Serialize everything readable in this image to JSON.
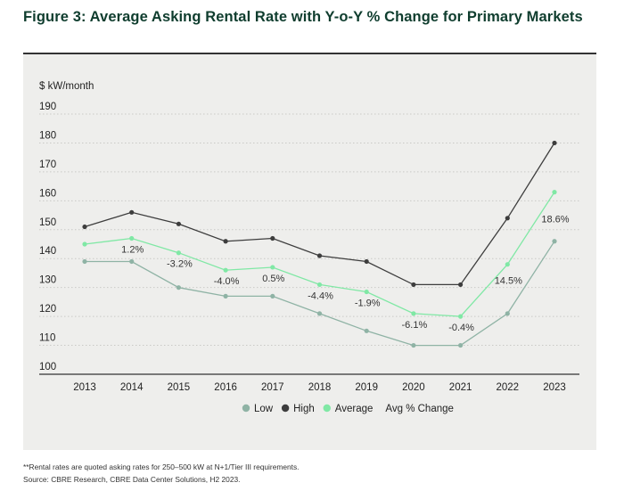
{
  "figure": {
    "title": "Figure 3: Average Asking Rental Rate with Y-o-Y % Change for Primary Markets"
  },
  "footnotes": {
    "note": "**Rental rates are quoted asking rates for 250–500 kW at N+1/Tier III requirements.",
    "source": "Source: CBRE Research, CBRE Data Center Solutions, H2 2023."
  },
  "colors": {
    "low": "#8fb3a5",
    "high": "#3d3d3d",
    "average": "#80e8a5",
    "panel": "#eeeeec",
    "title": "#0f3d2e"
  },
  "chart_data": {
    "type": "line",
    "title": "",
    "xlabel": "",
    "ylabel": "$ kW/month",
    "ylim": [
      100,
      190
    ],
    "yticks": [
      100,
      110,
      120,
      130,
      140,
      150,
      160,
      170,
      180,
      190
    ],
    "grid": "horizontal dotted",
    "legend_position": "bottom-center",
    "categories": [
      "2013",
      "2014",
      "2015",
      "2016",
      "2017",
      "2018",
      "2019",
      "2020",
      "2021",
      "2022",
      "2023"
    ],
    "series": [
      {
        "name": "Low",
        "color": "#8fb3a5",
        "values": [
          139,
          139,
          130,
          127,
          127,
          121,
          115,
          110,
          110,
          121,
          146
        ]
      },
      {
        "name": "High",
        "color": "#3d3d3d",
        "values": [
          151,
          156,
          152,
          146,
          147,
          141,
          139,
          131,
          131,
          154,
          180
        ]
      },
      {
        "name": "Average",
        "color": "#80e8a5",
        "values": [
          145,
          147,
          142,
          136,
          137,
          131,
          128.5,
          121,
          120,
          138,
          163
        ]
      }
    ],
    "pct_change_series_name": "Avg % Change",
    "pct_change_labels": [
      "",
      "1.2%",
      "-3.2%",
      "-4.0%",
      "0.5%",
      "-4.4%",
      "-1.9%",
      "-6.1%",
      "-0.4%",
      "14.5%",
      "18.6%"
    ]
  }
}
